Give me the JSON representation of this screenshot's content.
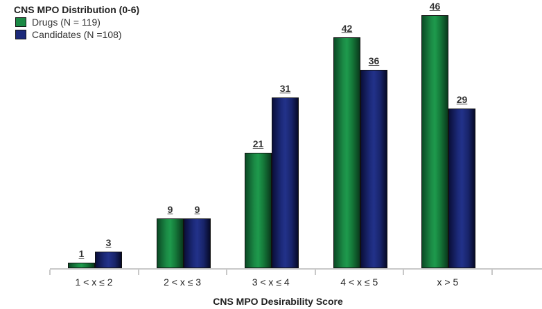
{
  "chart_data": {
    "type": "bar",
    "title": "CNS MPO Distribution (0-6)",
    "xlabel": "CNS MPO Desirability Score",
    "ylabel": "",
    "categories": [
      "1 < x ≤ 2",
      "2 < x ≤ 3",
      "3 < x ≤ 4",
      "4 < x ≤ 5",
      "x > 5"
    ],
    "series": [
      {
        "name": "Drugs (N = 119)",
        "color": "#1b8a45",
        "values": [
          1,
          9,
          21,
          42,
          46
        ]
      },
      {
        "name": "Candidates (N =108)",
        "color": "#1c2a7a",
        "values": [
          3,
          9,
          31,
          36,
          29
        ]
      }
    ],
    "ylim": [
      0,
      48
    ],
    "grid": false,
    "legend_position": "top-left",
    "data_labels": true
  },
  "legend": {
    "title": "CNS MPO Distribution (0-6)",
    "items": [
      {
        "label": "Drugs (N = 119)",
        "color": "#1b8a45"
      },
      {
        "label": "Candidates (N =108)",
        "color": "#1c2a7a"
      }
    ]
  }
}
